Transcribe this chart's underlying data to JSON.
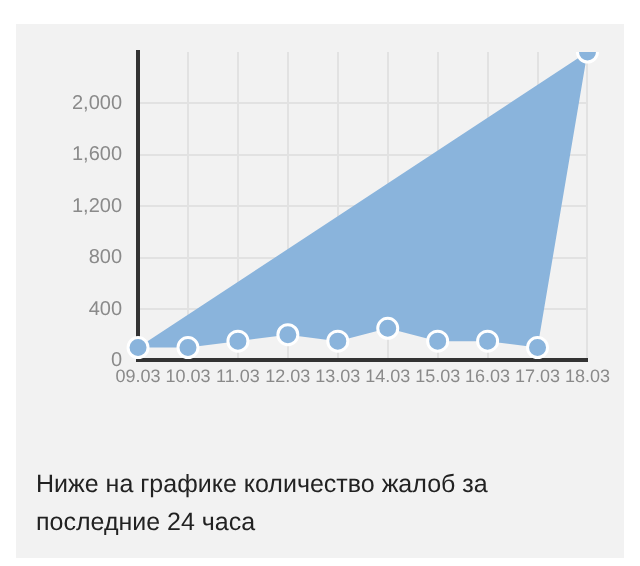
{
  "chart_data": {
    "type": "area",
    "title": "Ниже на графике количество жалоб за последние 24 часа",
    "categories": [
      "09.03",
      "10.03",
      "11.03",
      "12.03",
      "13.03",
      "14.03",
      "15.03",
      "16.03",
      "17.03",
      "18.03"
    ],
    "series": [
      {
        "color": "#8ab4dc",
        "values": [
          100,
          100,
          150,
          200,
          150,
          250,
          150,
          150,
          100,
          2400
        ]
      }
    ],
    "ylim": [
      0,
      2400
    ],
    "yticks": [
      0,
      400,
      800,
      {
        "value": 1200,
        "label": "1,200"
      },
      {
        "value": 1600,
        "label": "1,600"
      },
      {
        "value": 2000,
        "label": "2,000"
      }
    ],
    "grid": true,
    "marker": "circle",
    "legend": false
  }
}
